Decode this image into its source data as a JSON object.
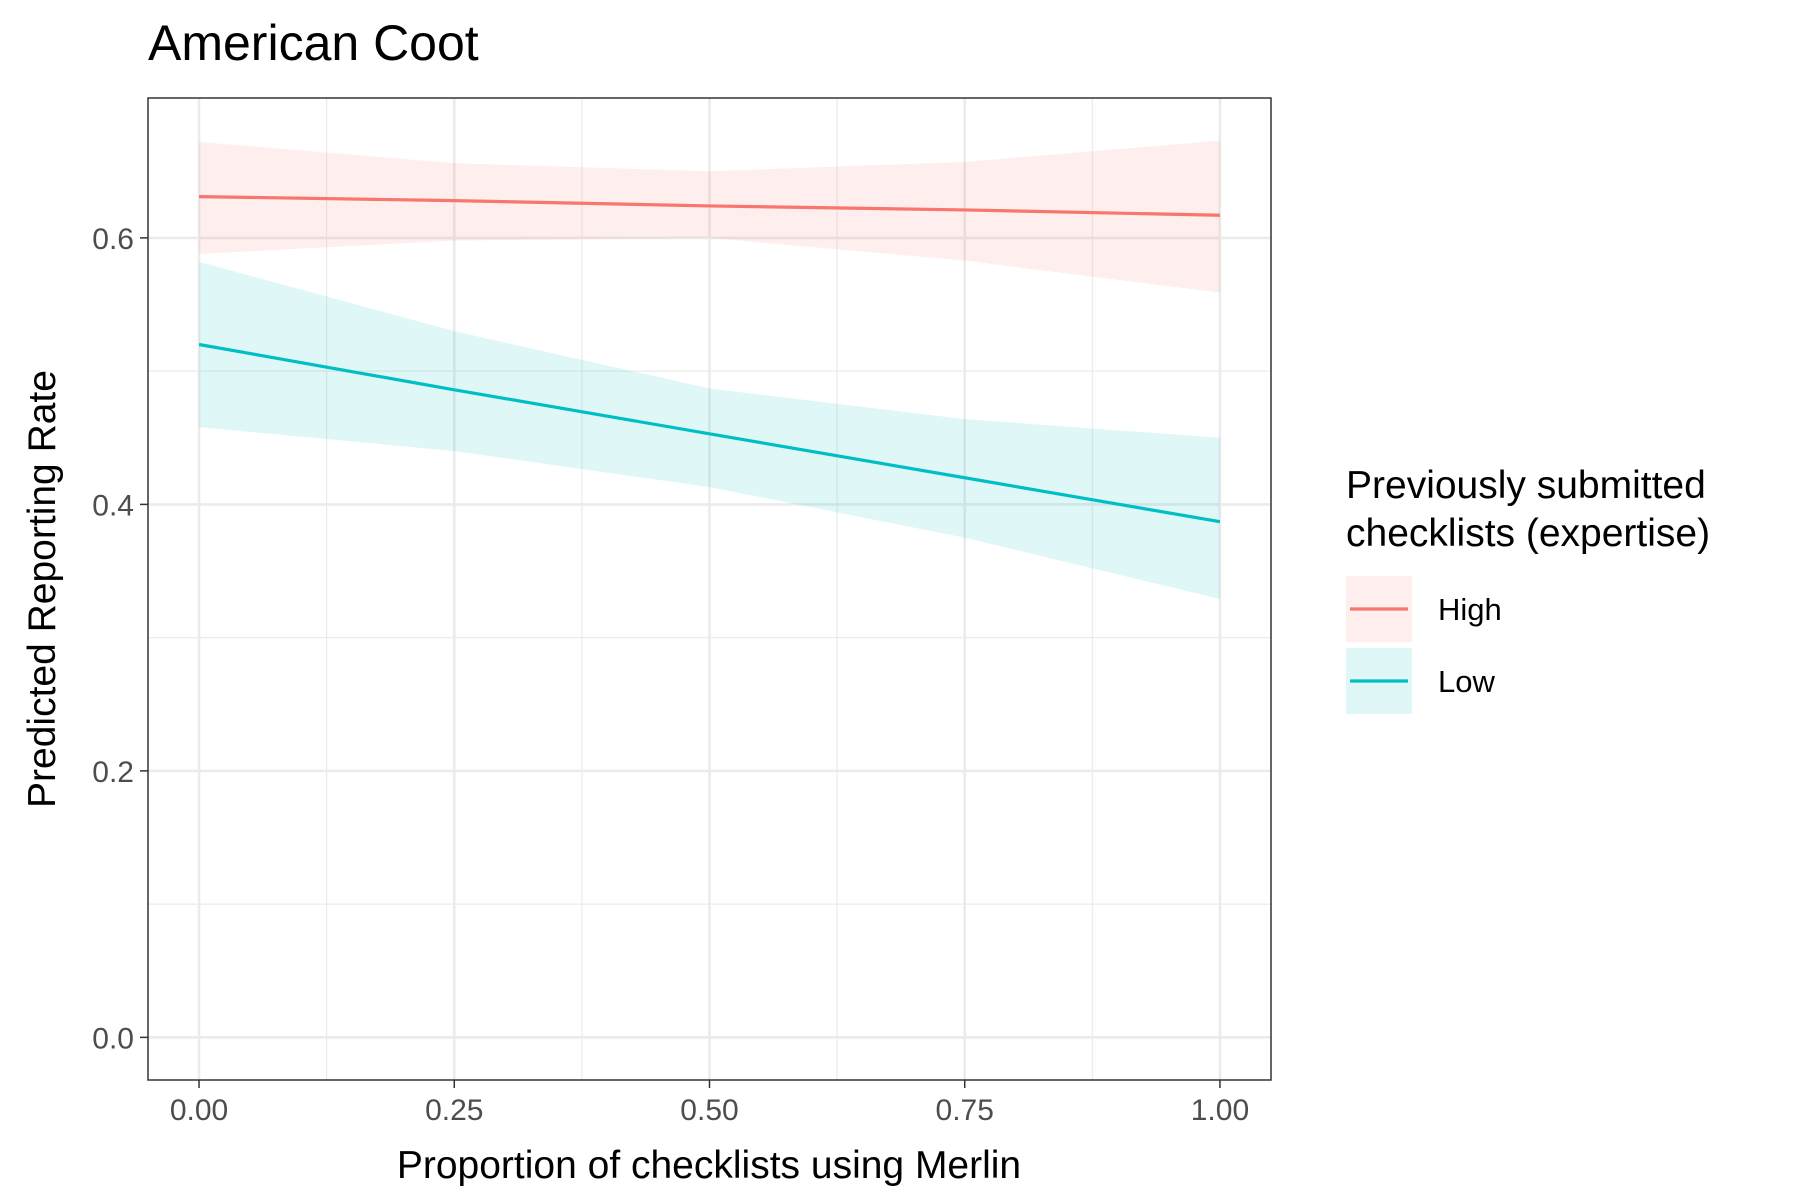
{
  "chart_data": {
    "type": "line",
    "title": "American Coot",
    "xlabel": "Proportion of checklists using Merlin",
    "ylabel": "Predicted Reporting Rate",
    "xlim": [
      -0.05,
      1.05
    ],
    "ylim": [
      -0.032,
      0.705
    ],
    "x_ticks": [
      0.0,
      0.25,
      0.5,
      0.75,
      1.0
    ],
    "x_tick_labels": [
      "0.00",
      "0.25",
      "0.50",
      "0.75",
      "1.00"
    ],
    "y_ticks": [
      0.0,
      0.2,
      0.4,
      0.6
    ],
    "y_tick_labels": [
      "0.0",
      "0.2",
      "0.4",
      "0.6"
    ],
    "grid": true,
    "legend_placement": "right",
    "legend_title": [
      "Previously submitted",
      "checklists (expertise)"
    ],
    "series": [
      {
        "name": "High",
        "color": "#F8766D",
        "x": [
          0.0,
          0.25,
          0.5,
          0.75,
          1.0
        ],
        "values": [
          0.631,
          0.628,
          0.624,
          0.621,
          0.617
        ],
        "ci_lower": [
          0.588,
          0.598,
          0.6,
          0.583,
          0.559
        ],
        "ci_upper": [
          0.672,
          0.656,
          0.65,
          0.657,
          0.673
        ]
      },
      {
        "name": "Low",
        "color": "#00BFC4",
        "x": [
          0.0,
          0.25,
          0.5,
          0.75,
          1.0
        ],
        "values": [
          0.52,
          0.486,
          0.453,
          0.42,
          0.387
        ],
        "ci_lower": [
          0.458,
          0.44,
          0.413,
          0.375,
          0.329
        ],
        "ci_upper": [
          0.582,
          0.53,
          0.487,
          0.464,
          0.45
        ]
      }
    ]
  }
}
